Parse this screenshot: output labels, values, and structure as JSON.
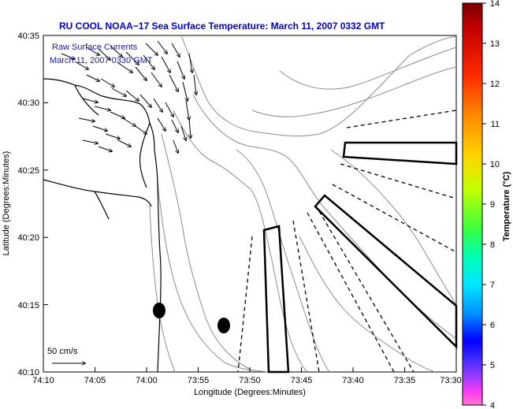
{
  "title": "RU COOL  NOAA−17  Sea Surface Temperature:  March 11, 2007 0332 GMT",
  "overlay": {
    "line1": "Raw Surface Currents",
    "line2": "March 11, 2007 0330 GMT"
  },
  "axes": {
    "xlabel": "Longitude (Degrees:Minutes)",
    "ylabel": "Latitude (Degrees:Minutes)",
    "xticks": [
      "74:10",
      "74:05",
      "74:00",
      "73:55",
      "73:50",
      "73:45",
      "73:40",
      "73:35",
      "73:30"
    ],
    "yticks": [
      "40:35",
      "40:30",
      "40:25",
      "40:20",
      "40:15",
      "40:10"
    ]
  },
  "scale": {
    "label": "50 cm/s"
  },
  "colorbar": {
    "label": "Temperature (°C)",
    "ticks": [
      "14",
      "13",
      "12",
      "11",
      "10",
      "9",
      "8",
      "7",
      "6",
      "5",
      "4"
    ],
    "range": [
      4,
      14
    ]
  },
  "colors": {
    "title": "#0000cc",
    "overlay_text": "#1a1aa6",
    "contour": "#8c8c8c"
  }
}
